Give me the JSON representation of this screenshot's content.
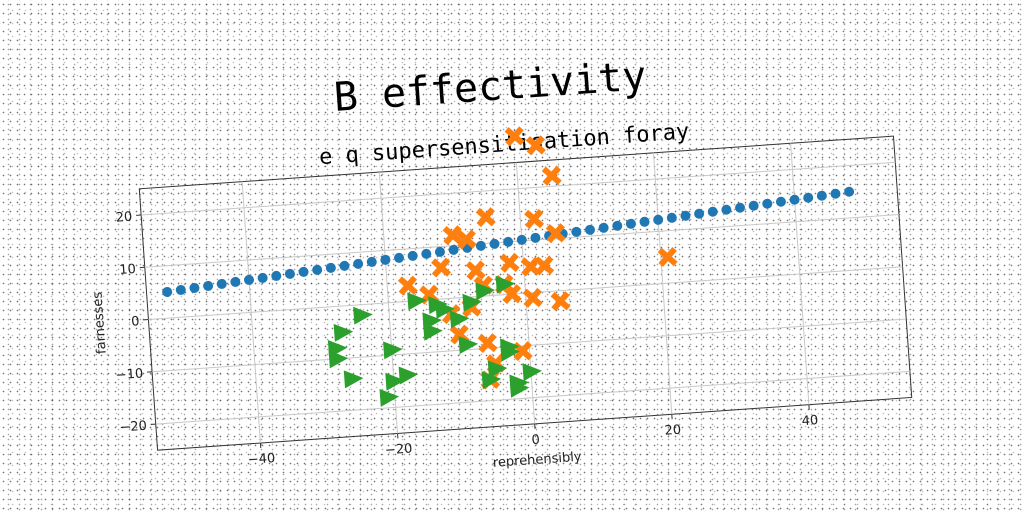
{
  "chart_data": {
    "type": "scatter",
    "title": "B effectivity",
    "subtitle": "e q supersensitisation foray",
    "xlabel": "reprehensibly",
    "ylabel": "farnesses",
    "xlim": [
      -55,
      55
    ],
    "ylim": [
      -25,
      25
    ],
    "xticks": [
      -40,
      -20,
      0,
      20,
      40
    ],
    "yticks": [
      -20,
      -10,
      0,
      10,
      20
    ],
    "grid": true,
    "rotation_deg": -4,
    "series": [
      {
        "marker": "circle",
        "color": "#1f77b4",
        "points": [
          [
            -52,
            5
          ],
          [
            -50,
            5.2
          ],
          [
            -48,
            5.4
          ],
          [
            -46,
            5.6
          ],
          [
            -44,
            5.8
          ],
          [
            -42,
            6
          ],
          [
            -40,
            6.2
          ],
          [
            -38,
            6.4
          ],
          [
            -36,
            6.6
          ],
          [
            -34,
            6.8
          ],
          [
            -32,
            7
          ],
          [
            -30,
            7.2
          ],
          [
            -28,
            7.4
          ],
          [
            -26,
            7.6
          ],
          [
            -24,
            7.8
          ],
          [
            -22,
            8
          ],
          [
            -20,
            8.2
          ],
          [
            -18,
            8.4
          ],
          [
            -16,
            8.6
          ],
          [
            -14,
            8.8
          ],
          [
            -12,
            9
          ],
          [
            -10,
            9.2
          ],
          [
            -8,
            9.4
          ],
          [
            -6,
            9.6
          ],
          [
            -4,
            9.8
          ],
          [
            -2,
            10
          ],
          [
            0,
            10.2
          ],
          [
            2,
            10.4
          ],
          [
            4,
            10.6
          ],
          [
            6,
            10.8
          ],
          [
            8,
            11
          ],
          [
            10,
            11.2
          ],
          [
            12,
            11.4
          ],
          [
            14,
            11.6
          ],
          [
            16,
            11.8
          ],
          [
            18,
            12
          ],
          [
            20,
            12.2
          ],
          [
            22,
            12.4
          ],
          [
            24,
            12.6
          ],
          [
            26,
            12.8
          ],
          [
            28,
            13
          ],
          [
            30,
            13.2
          ],
          [
            32,
            13.4
          ],
          [
            34,
            13.6
          ],
          [
            36,
            13.8
          ],
          [
            38,
            14
          ],
          [
            40,
            14.2
          ],
          [
            42,
            14.4
          ],
          [
            44,
            14.6
          ],
          [
            46,
            14.8
          ],
          [
            48,
            15
          ]
        ]
      },
      {
        "marker": "x",
        "color": "#ff7f0e",
        "points": [
          [
            0,
            30
          ],
          [
            3,
            28
          ],
          [
            5,
            22
          ],
          [
            -5,
            15
          ],
          [
            2,
            14
          ],
          [
            5,
            11
          ],
          [
            -10,
            12
          ],
          [
            -8,
            11
          ],
          [
            -12,
            6
          ],
          [
            -7,
            5
          ],
          [
            -2,
            6
          ],
          [
            1,
            5
          ],
          [
            3,
            5
          ],
          [
            -17,
            3
          ],
          [
            -14,
            1
          ],
          [
            -6,
            2
          ],
          [
            -3,
            2
          ],
          [
            -2,
            0
          ],
          [
            -8,
            -2
          ],
          [
            -11,
            -3
          ],
          [
            1,
            -1
          ],
          [
            5,
            -2
          ],
          [
            -10,
            -7
          ],
          [
            -6,
            -9
          ],
          [
            -1,
            -11
          ],
          [
            -5,
            -13
          ],
          [
            -6,
            -16
          ],
          [
            21,
            5
          ]
        ]
      },
      {
        "marker": "triangle-right",
        "color": "#2ca02c",
        "points": [
          [
            -24,
            -2
          ],
          [
            -27,
            -5
          ],
          [
            -28,
            -8
          ],
          [
            -28,
            -10
          ],
          [
            -20,
            -9
          ],
          [
            -26,
            -14
          ],
          [
            -20,
            -15
          ],
          [
            -18,
            -14
          ],
          [
            -21,
            -18
          ],
          [
            -16,
            0
          ],
          [
            -13,
            -1
          ],
          [
            -14,
            -4
          ],
          [
            -14,
            -6
          ],
          [
            -10,
            -4
          ],
          [
            -12,
            -2
          ],
          [
            -8,
            -1
          ],
          [
            -6,
            1
          ],
          [
            -3,
            2
          ],
          [
            -9,
            -9
          ],
          [
            -3,
            -10
          ],
          [
            -3,
            -11
          ],
          [
            -5,
            -14
          ],
          [
            -6,
            -16
          ],
          [
            -2,
            -17
          ],
          [
            0,
            -15
          ],
          [
            -2,
            -18
          ]
        ]
      }
    ]
  }
}
